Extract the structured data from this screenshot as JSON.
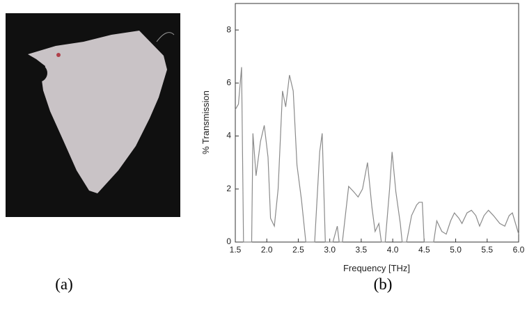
{
  "chart_data": {
    "type": "line",
    "xlabel": "Frequency [THz]",
    "ylabel": "% Transmission",
    "x": [
      1.5,
      1.55,
      1.6,
      1.63,
      1.76,
      1.78,
      1.83,
      1.9,
      1.96,
      2.02,
      2.06,
      2.12,
      2.18,
      2.25,
      2.3,
      2.36,
      2.42,
      2.48,
      2.55,
      2.62,
      2.76,
      2.84,
      2.88,
      2.93,
      3.05,
      3.12,
      3.15,
      3.2,
      3.3,
      3.38,
      3.45,
      3.52,
      3.6,
      3.67,
      3.72,
      3.78,
      3.82,
      3.88,
      3.95,
      3.99,
      4.05,
      4.12,
      4.15,
      4.22,
      4.3,
      4.38,
      4.42,
      4.47,
      4.5,
      4.65,
      4.7,
      4.78,
      4.85,
      4.92,
      4.98,
      5.05,
      5.1,
      5.18,
      5.25,
      5.32,
      5.38,
      5.45,
      5.52,
      5.6,
      5.7,
      5.78,
      5.85,
      5.9,
      5.95,
      6.0
    ],
    "values": [
      5.0,
      5.2,
      6.6,
      0,
      0,
      4.1,
      2.5,
      3.8,
      4.4,
      3.2,
      0.9,
      0.6,
      2.0,
      5.7,
      5.1,
      6.3,
      5.7,
      2.9,
      1.6,
      0,
      0,
      3.4,
      4.1,
      0,
      0,
      0.6,
      0,
      0,
      2.1,
      1.9,
      1.7,
      2.0,
      3.0,
      1.3,
      0.4,
      0.7,
      0,
      0,
      2.0,
      3.4,
      1.9,
      0.7,
      0,
      0,
      1.0,
      1.4,
      1.5,
      1.5,
      0,
      0,
      0.8,
      0.4,
      0.3,
      0.8,
      1.1,
      0.9,
      0.7,
      1.1,
      1.2,
      1.0,
      0.6,
      1.0,
      1.2,
      1.0,
      0.7,
      0.6,
      1.0,
      1.1,
      0.7,
      0.3
    ],
    "color": "#8a8a8a",
    "xlim": [
      1.5,
      6.0
    ],
    "xticks": [
      1.5,
      {
        "value": 2,
        "label": "2.0"
      },
      2.5,
      {
        "value": 3,
        "label": "3.0"
      },
      3.5,
      {
        "value": 4,
        "label": "4.0"
      },
      4.5,
      {
        "value": 5,
        "label": "5.0"
      },
      5.5,
      {
        "value": 6,
        "label": "6.0"
      }
    ],
    "ylim": [
      0,
      9
    ],
    "yticks": [
      0,
      2,
      4,
      6,
      8
    ],
    "grid": false
  },
  "captions": [
    "(a)",
    "(b)"
  ]
}
